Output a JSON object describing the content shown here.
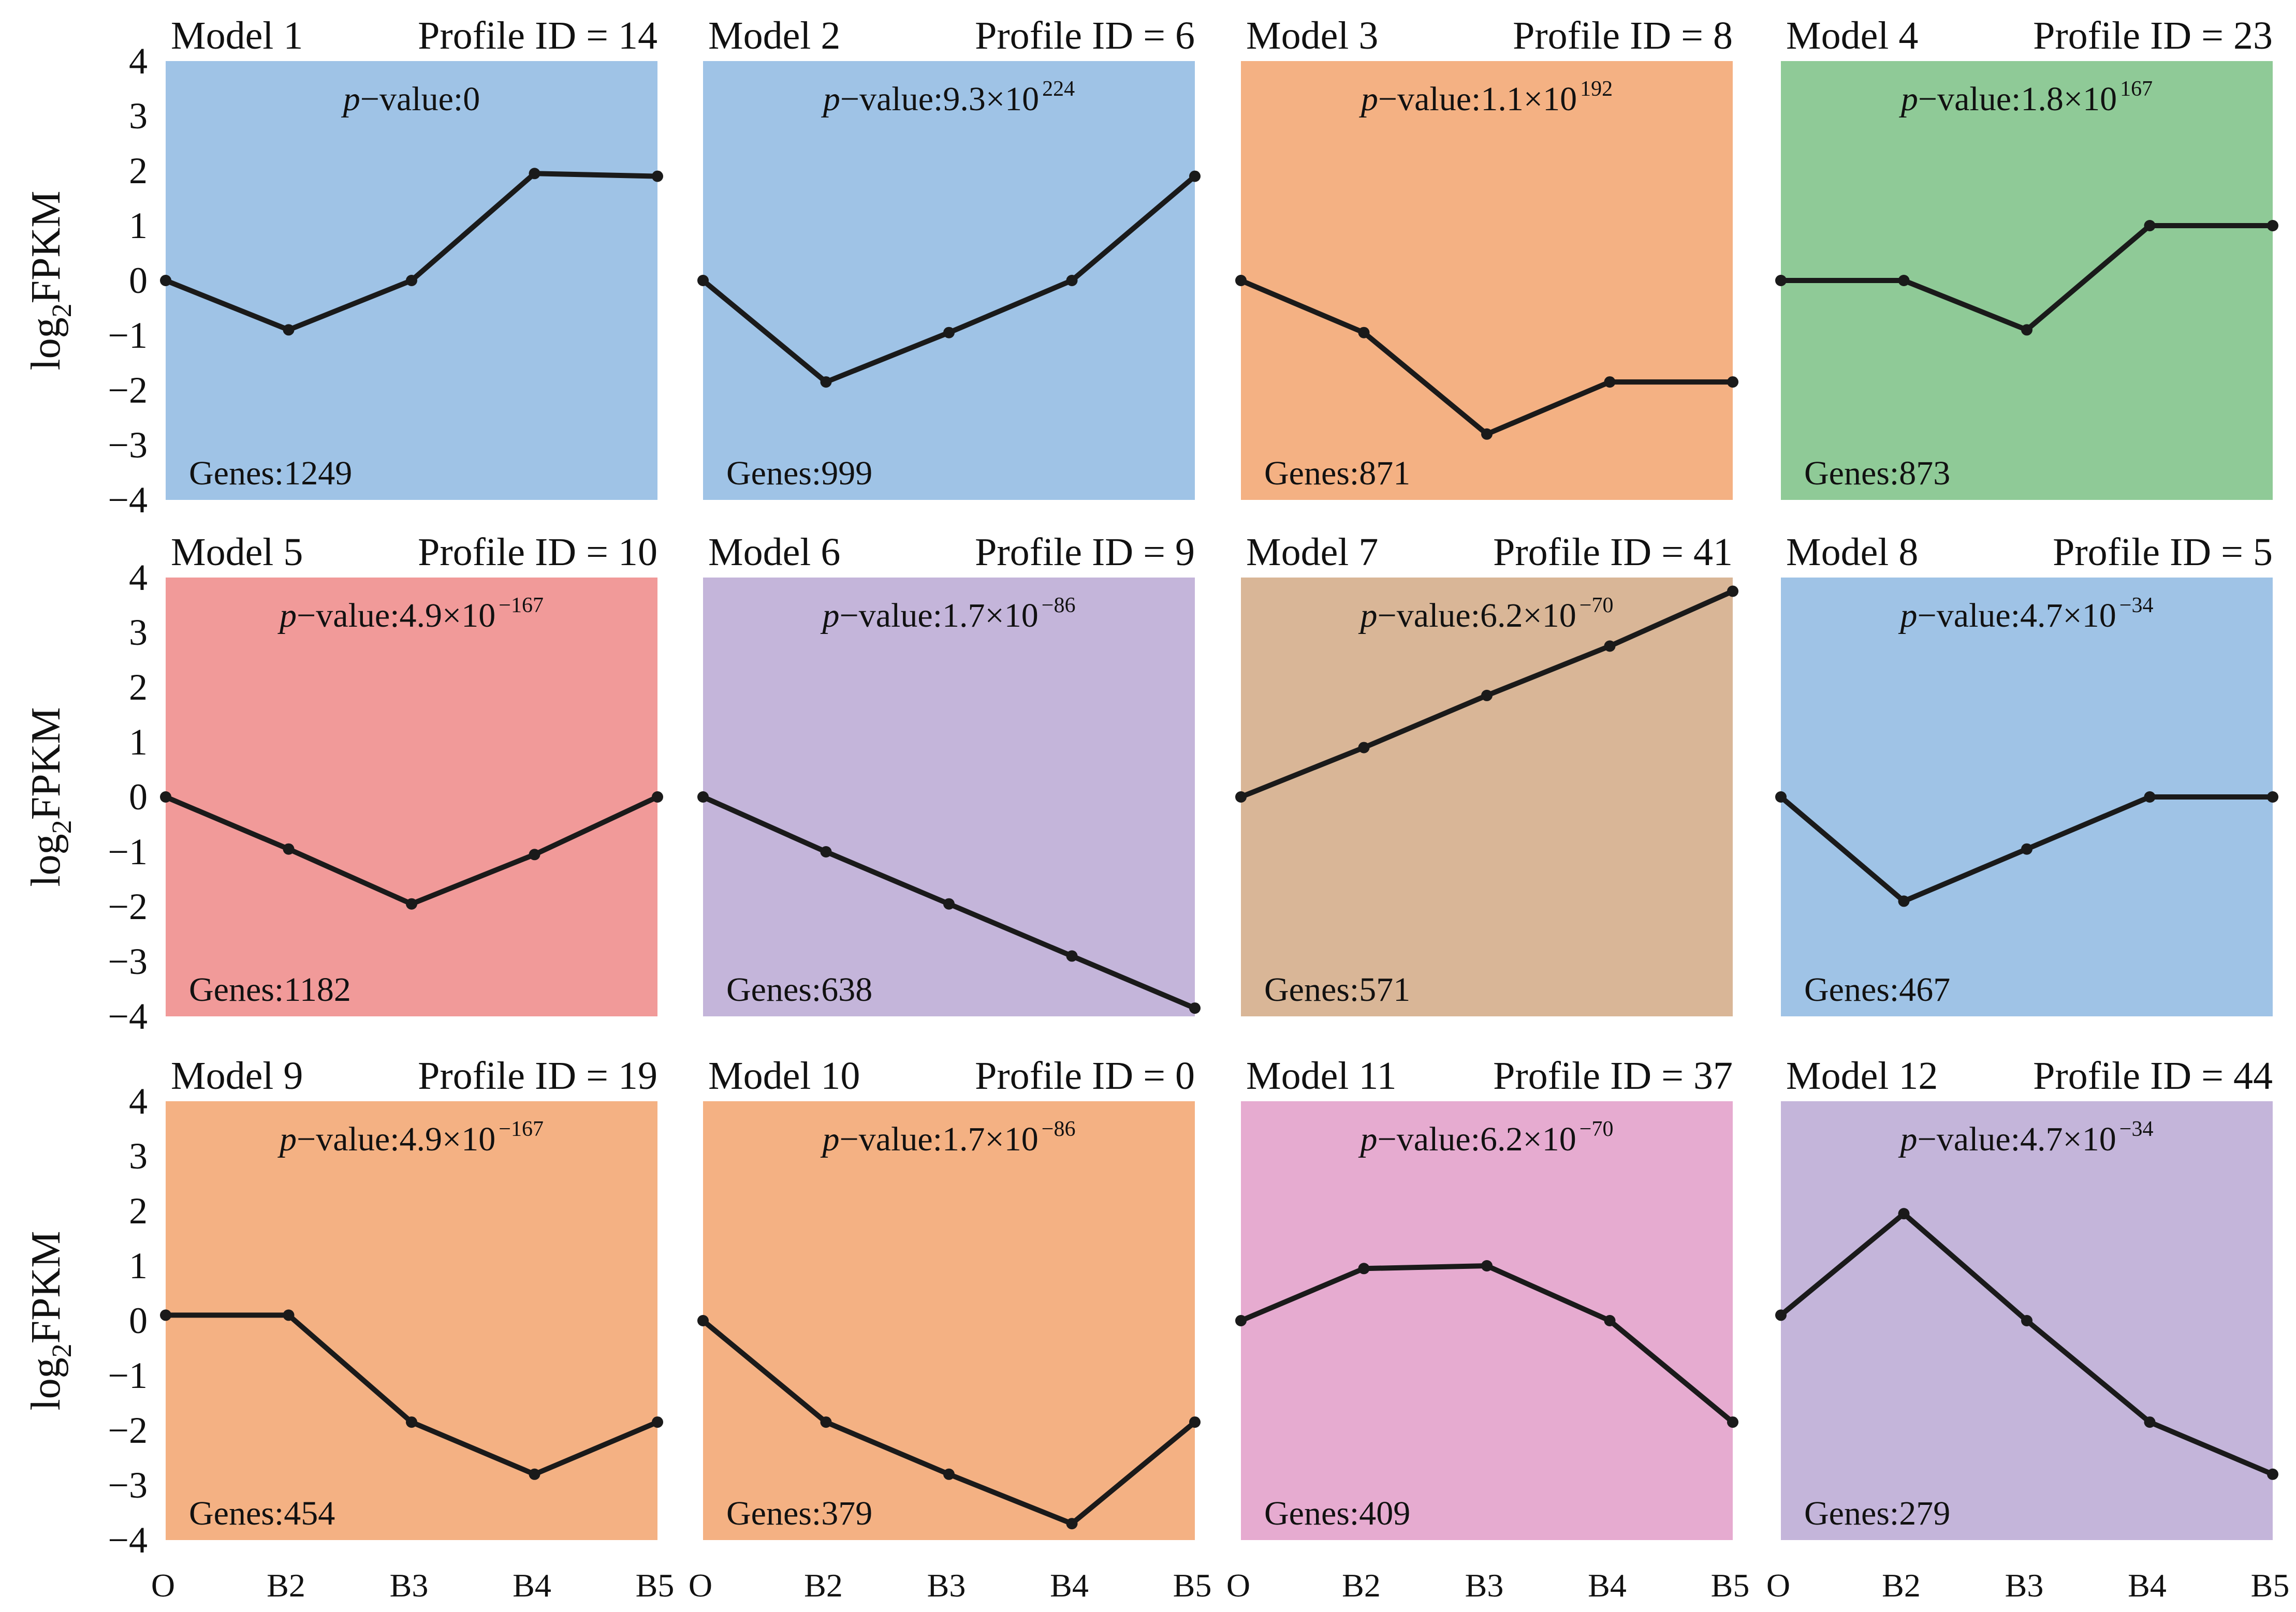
{
  "figure": {
    "ylabel": {
      "base": "log",
      "sub": "2",
      "rest": "FPKM"
    },
    "x_tick_labels": [
      "O",
      "B2",
      "B3",
      "B4",
      "B5"
    ],
    "y_tick_labels": [
      "4",
      "3",
      "2",
      "1",
      "0",
      "−1",
      "−2",
      "−3",
      "−4"
    ],
    "colors": {
      "blue": "#9fc3e6",
      "orange": "#f4b183",
      "green": "#8fca97",
      "red": "#f19a99",
      "purple": "#c4b5da",
      "tan": "#d9b697",
      "pink": "#e6abd0",
      "line": "#1a1a1a"
    }
  },
  "chart_data": [
    {
      "type": "line",
      "model": "Model 1",
      "profile": "Profile ID = 14",
      "pv_prefix": "p",
      "pv_text": "−value:0",
      "pv_sup": "",
      "genes": "Genes:1249",
      "bg": "#9fc3e6",
      "ylim": [
        -4,
        4
      ],
      "x": [
        "O",
        "B2",
        "B3",
        "B4",
        "B5"
      ],
      "values": [
        0,
        -0.9,
        0,
        1.95,
        1.9
      ]
    },
    {
      "type": "line",
      "model": "Model 2",
      "profile": "Profile ID = 6",
      "pv_prefix": "p",
      "pv_text": "−value:9.3×10",
      "pv_sup": "224",
      "genes": "Genes:999",
      "bg": "#9fc3e6",
      "ylim": [
        -4,
        4
      ],
      "x": [
        "O",
        "B2",
        "B3",
        "B4",
        "B5"
      ],
      "values": [
        0,
        -1.85,
        -0.95,
        0,
        1.9
      ]
    },
    {
      "type": "line",
      "model": "Model 3",
      "profile": "Profile ID = 8",
      "pv_prefix": "p",
      "pv_text": "−value:1.1×10",
      "pv_sup": "192",
      "genes": "Genes:871",
      "bg": "#f4b183",
      "ylim": [
        -4,
        4
      ],
      "x": [
        "O",
        "B2",
        "B3",
        "B4",
        "B5"
      ],
      "values": [
        0,
        -0.95,
        -2.8,
        -1.85,
        -1.85
      ]
    },
    {
      "type": "line",
      "model": "Model 4",
      "profile": "Profile ID = 23",
      "pv_prefix": "p",
      "pv_text": "−value:1.8×10",
      "pv_sup": "167",
      "genes": "Genes:873",
      "bg": "#8fca97",
      "ylim": [
        -4,
        4
      ],
      "x": [
        "O",
        "B2",
        "B3",
        "B4",
        "B5"
      ],
      "values": [
        0,
        0,
        -0.9,
        1,
        1
      ]
    },
    {
      "type": "line",
      "model": "Model 5",
      "profile": "Profile ID = 10",
      "pv_prefix": "p",
      "pv_text": "−value:4.9×10",
      "pv_sup": "−167",
      "genes": "Genes:1182",
      "bg": "#f19a99",
      "ylim": [
        -4,
        4
      ],
      "x": [
        "O",
        "B2",
        "B3",
        "B4",
        "B5"
      ],
      "values": [
        0,
        -0.95,
        -1.95,
        -1.05,
        0
      ]
    },
    {
      "type": "line",
      "model": "Model 6",
      "profile": "Profile ID = 9",
      "pv_prefix": "p",
      "pv_text": "−value:1.7×10",
      "pv_sup": "−86",
      "genes": "Genes:638",
      "bg": "#c4b5da",
      "ylim": [
        -4,
        4
      ],
      "x": [
        "O",
        "B2",
        "B3",
        "B4",
        "B5"
      ],
      "values": [
        0,
        -1,
        -1.95,
        -2.9,
        -3.85
      ]
    },
    {
      "type": "line",
      "model": "Model 7",
      "profile": "Profile ID = 41",
      "pv_prefix": "p",
      "pv_text": "−value:6.2×10",
      "pv_sup": "−70",
      "genes": "Genes:571",
      "bg": "#d9b697",
      "ylim": [
        -4,
        4
      ],
      "x": [
        "O",
        "B2",
        "B3",
        "B4",
        "B5"
      ],
      "values": [
        0,
        0.9,
        1.85,
        2.75,
        3.75
      ]
    },
    {
      "type": "line",
      "model": "Model 8",
      "profile": "Profile ID = 5",
      "pv_prefix": "p",
      "pv_text": "−value:4.7×10",
      "pv_sup": "−34",
      "genes": "Genes:467",
      "bg": "#9fc3e6",
      "ylim": [
        -4,
        4
      ],
      "x": [
        "O",
        "B2",
        "B3",
        "B4",
        "B5"
      ],
      "values": [
        0,
        -1.9,
        -0.95,
        0,
        0
      ]
    },
    {
      "type": "line",
      "model": "Model 9",
      "profile": "Profile ID = 19",
      "pv_prefix": "p",
      "pv_text": "−value:4.9×10",
      "pv_sup": "−167",
      "genes": "Genes:454",
      "bg": "#f4b183",
      "ylim": [
        -4,
        4
      ],
      "x": [
        "O",
        "B2",
        "B3",
        "B4",
        "B5"
      ],
      "values": [
        0.1,
        0.1,
        -1.85,
        -2.8,
        -1.85
      ]
    },
    {
      "type": "line",
      "model": "Model 10",
      "profile": "Profile ID = 0",
      "pv_prefix": "p",
      "pv_text": "−value:1.7×10",
      "pv_sup": "−86",
      "genes": "Genes:379",
      "bg": "#f4b183",
      "ylim": [
        -4,
        4
      ],
      "x": [
        "O",
        "B2",
        "B3",
        "B4",
        "B5"
      ],
      "values": [
        0,
        -1.85,
        -2.8,
        -3.7,
        -1.85
      ]
    },
    {
      "type": "line",
      "model": "Model 11",
      "profile": "Profile ID = 37",
      "pv_prefix": "p",
      "pv_text": "−value:6.2×10",
      "pv_sup": "−70",
      "genes": "Genes:409",
      "bg": "#e6abd0",
      "ylim": [
        -4,
        4
      ],
      "x": [
        "O",
        "B2",
        "B3",
        "B4",
        "B5"
      ],
      "values": [
        0,
        0.95,
        1,
        0,
        -1.85
      ]
    },
    {
      "type": "line",
      "model": "Model 12",
      "profile": "Profile ID = 44",
      "pv_prefix": "p",
      "pv_text": "−value:4.7×10",
      "pv_sup": "−34",
      "genes": "Genes:279",
      "bg": "#c4b5da",
      "ylim": [
        -4,
        4
      ],
      "x": [
        "O",
        "B2",
        "B3",
        "B4",
        "B5"
      ],
      "values": [
        0.1,
        1.95,
        0,
        -1.85,
        -2.8
      ]
    }
  ]
}
